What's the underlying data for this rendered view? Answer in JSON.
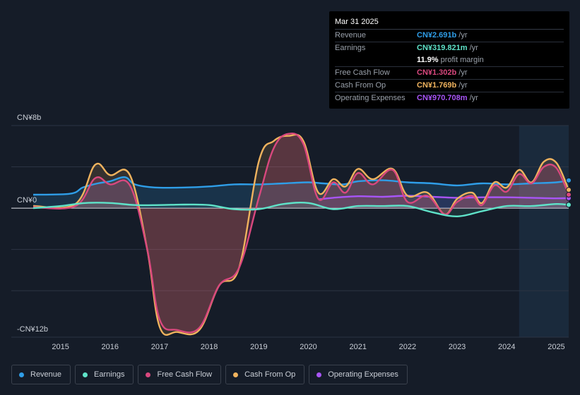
{
  "tooltip": {
    "date": "Mar 31 2025",
    "rows": [
      {
        "label": "Revenue",
        "value": "CN¥2.691b",
        "unit": "/yr",
        "color": "#2f9ee8"
      },
      {
        "label": "Earnings",
        "value": "CN¥319.821m",
        "unit": "/yr",
        "color": "#5fe3c9"
      },
      {
        "label": "",
        "value": "11.9%",
        "unit": "profit margin",
        "color": "#ffffff"
      },
      {
        "label": "Free Cash Flow",
        "value": "CN¥1.302b",
        "unit": "/yr",
        "color": "#d9487e"
      },
      {
        "label": "Cash From Op",
        "value": "CN¥1.769b",
        "unit": "/yr",
        "color": "#f0b35e"
      },
      {
        "label": "Operating Expenses",
        "value": "CN¥970.708m",
        "unit": "/yr",
        "color": "#a855f7"
      }
    ]
  },
  "legend": [
    {
      "label": "Revenue",
      "color": "#2f9ee8"
    },
    {
      "label": "Earnings",
      "color": "#5fe3c9"
    },
    {
      "label": "Free Cash Flow",
      "color": "#d9487e"
    },
    {
      "label": "Cash From Op",
      "color": "#f0b35e"
    },
    {
      "label": "Operating Expenses",
      "color": "#a855f7"
    }
  ],
  "chart_data": {
    "type": "line",
    "title": "",
    "xlabel": "",
    "ylabel": "",
    "units": "CN¥ billions",
    "y_tick_labels": [
      {
        "value": 8,
        "label": "CN¥8b"
      },
      {
        "value": 0,
        "label": "CN¥0"
      },
      {
        "value": -12,
        "label": "-CN¥12b"
      }
    ],
    "ylim": [
      -12.5,
      8
    ],
    "xlim": [
      2014.45,
      2025.25
    ],
    "x_tick_labels": [
      "2015",
      "2016",
      "2017",
      "2018",
      "2019",
      "2020",
      "2021",
      "2022",
      "2023",
      "2024",
      "2025"
    ],
    "x_ticks": [
      2015,
      2016,
      2017,
      2018,
      2019,
      2020,
      2021,
      2022,
      2023,
      2024,
      2025
    ],
    "forecast_start": 2024.25,
    "series": [
      {
        "name": "Revenue",
        "color": "#2f9ee8",
        "x": [
          2014.45,
          2015.2,
          2015.45,
          2015.75,
          2016.0,
          2016.3,
          2016.5,
          2016.9,
          2017.5,
          2018.0,
          2018.5,
          2019.0,
          2019.5,
          2020.0,
          2020.3,
          2020.7,
          2021.0,
          2021.5,
          2022.0,
          2022.5,
          2023.0,
          2023.5,
          2024.0,
          2024.5,
          2025.0,
          2025.25
        ],
        "y": [
          1.3,
          1.4,
          2.0,
          2.4,
          2.6,
          3.0,
          2.3,
          2.0,
          2.0,
          2.1,
          2.3,
          2.3,
          2.4,
          2.5,
          2.4,
          2.3,
          2.6,
          2.7,
          2.5,
          2.4,
          2.2,
          2.4,
          2.3,
          2.4,
          2.5,
          2.69
        ]
      },
      {
        "name": "Earnings",
        "color": "#5fe3c9",
        "x": [
          2014.45,
          2015.0,
          2015.5,
          2016.0,
          2016.5,
          2017.0,
          2017.5,
          2018.0,
          2018.5,
          2019.0,
          2019.5,
          2020.0,
          2020.5,
          2021.0,
          2021.5,
          2022.0,
          2022.5,
          2023.0,
          2023.5,
          2024.0,
          2024.5,
          2025.0,
          2025.25
        ],
        "y": [
          0.0,
          0.2,
          0.5,
          0.5,
          0.3,
          0.3,
          0.35,
          0.3,
          -0.1,
          -0.1,
          0.4,
          0.5,
          -0.1,
          0.2,
          0.2,
          0.2,
          -0.4,
          -0.8,
          -0.3,
          0.2,
          0.2,
          0.4,
          0.32
        ]
      },
      {
        "name": "Free Cash Flow",
        "color": "#d9487e",
        "x": [
          2014.45,
          2015.3,
          2015.7,
          2016.0,
          2016.4,
          2016.75,
          2017.0,
          2017.35,
          2017.8,
          2018.2,
          2018.6,
          2019.0,
          2019.3,
          2019.6,
          2019.9,
          2020.2,
          2020.5,
          2020.75,
          2021.0,
          2021.3,
          2021.7,
          2022.0,
          2022.4,
          2022.75,
          2023.0,
          2023.3,
          2023.5,
          2023.75,
          2024.0,
          2024.25,
          2024.5,
          2024.75,
          2025.0,
          2025.25
        ],
        "y": [
          0.1,
          0.2,
          2.9,
          2.3,
          2.2,
          -4.0,
          -10.8,
          -11.8,
          -11.6,
          -7.5,
          -5.8,
          1.0,
          5.8,
          7.2,
          6.2,
          0.9,
          2.5,
          1.5,
          3.4,
          2.3,
          3.7,
          0.6,
          1.2,
          -0.6,
          0.6,
          1.2,
          0.3,
          2.2,
          1.6,
          3.3,
          2.4,
          4.0,
          3.9,
          1.3
        ]
      },
      {
        "name": "Cash From Op",
        "color": "#f0b35e",
        "x": [
          2014.45,
          2015.3,
          2015.7,
          2016.0,
          2016.4,
          2016.75,
          2017.0,
          2017.35,
          2017.8,
          2018.2,
          2018.6,
          2019.0,
          2019.3,
          2019.6,
          2019.9,
          2020.2,
          2020.5,
          2020.75,
          2021.0,
          2021.3,
          2021.7,
          2022.0,
          2022.4,
          2022.75,
          2023.0,
          2023.3,
          2023.5,
          2023.75,
          2024.0,
          2024.25,
          2024.5,
          2024.75,
          2025.0,
          2025.25
        ],
        "y": [
          0.2,
          0.4,
          4.2,
          3.2,
          3.2,
          -4.0,
          -11.5,
          -12.0,
          -11.8,
          -7.5,
          -5.8,
          4.5,
          6.5,
          7.0,
          6.5,
          1.5,
          2.8,
          2.1,
          3.8,
          2.8,
          3.8,
          1.2,
          1.5,
          -0.6,
          0.9,
          1.5,
          0.5,
          2.5,
          2.0,
          3.7,
          2.5,
          4.5,
          4.4,
          1.77
        ]
      },
      {
        "name": "Operating Expenses",
        "color": "#a855f7",
        "x": [
          2020.2,
          2020.5,
          2021.0,
          2021.5,
          2022.0,
          2022.5,
          2023.0,
          2023.5,
          2024.0,
          2024.5,
          2025.0,
          2025.25
        ],
        "y": [
          0.85,
          1.0,
          1.15,
          1.1,
          1.2,
          1.1,
          1.0,
          1.05,
          1.05,
          1.0,
          0.95,
          0.97
        ]
      }
    ]
  }
}
